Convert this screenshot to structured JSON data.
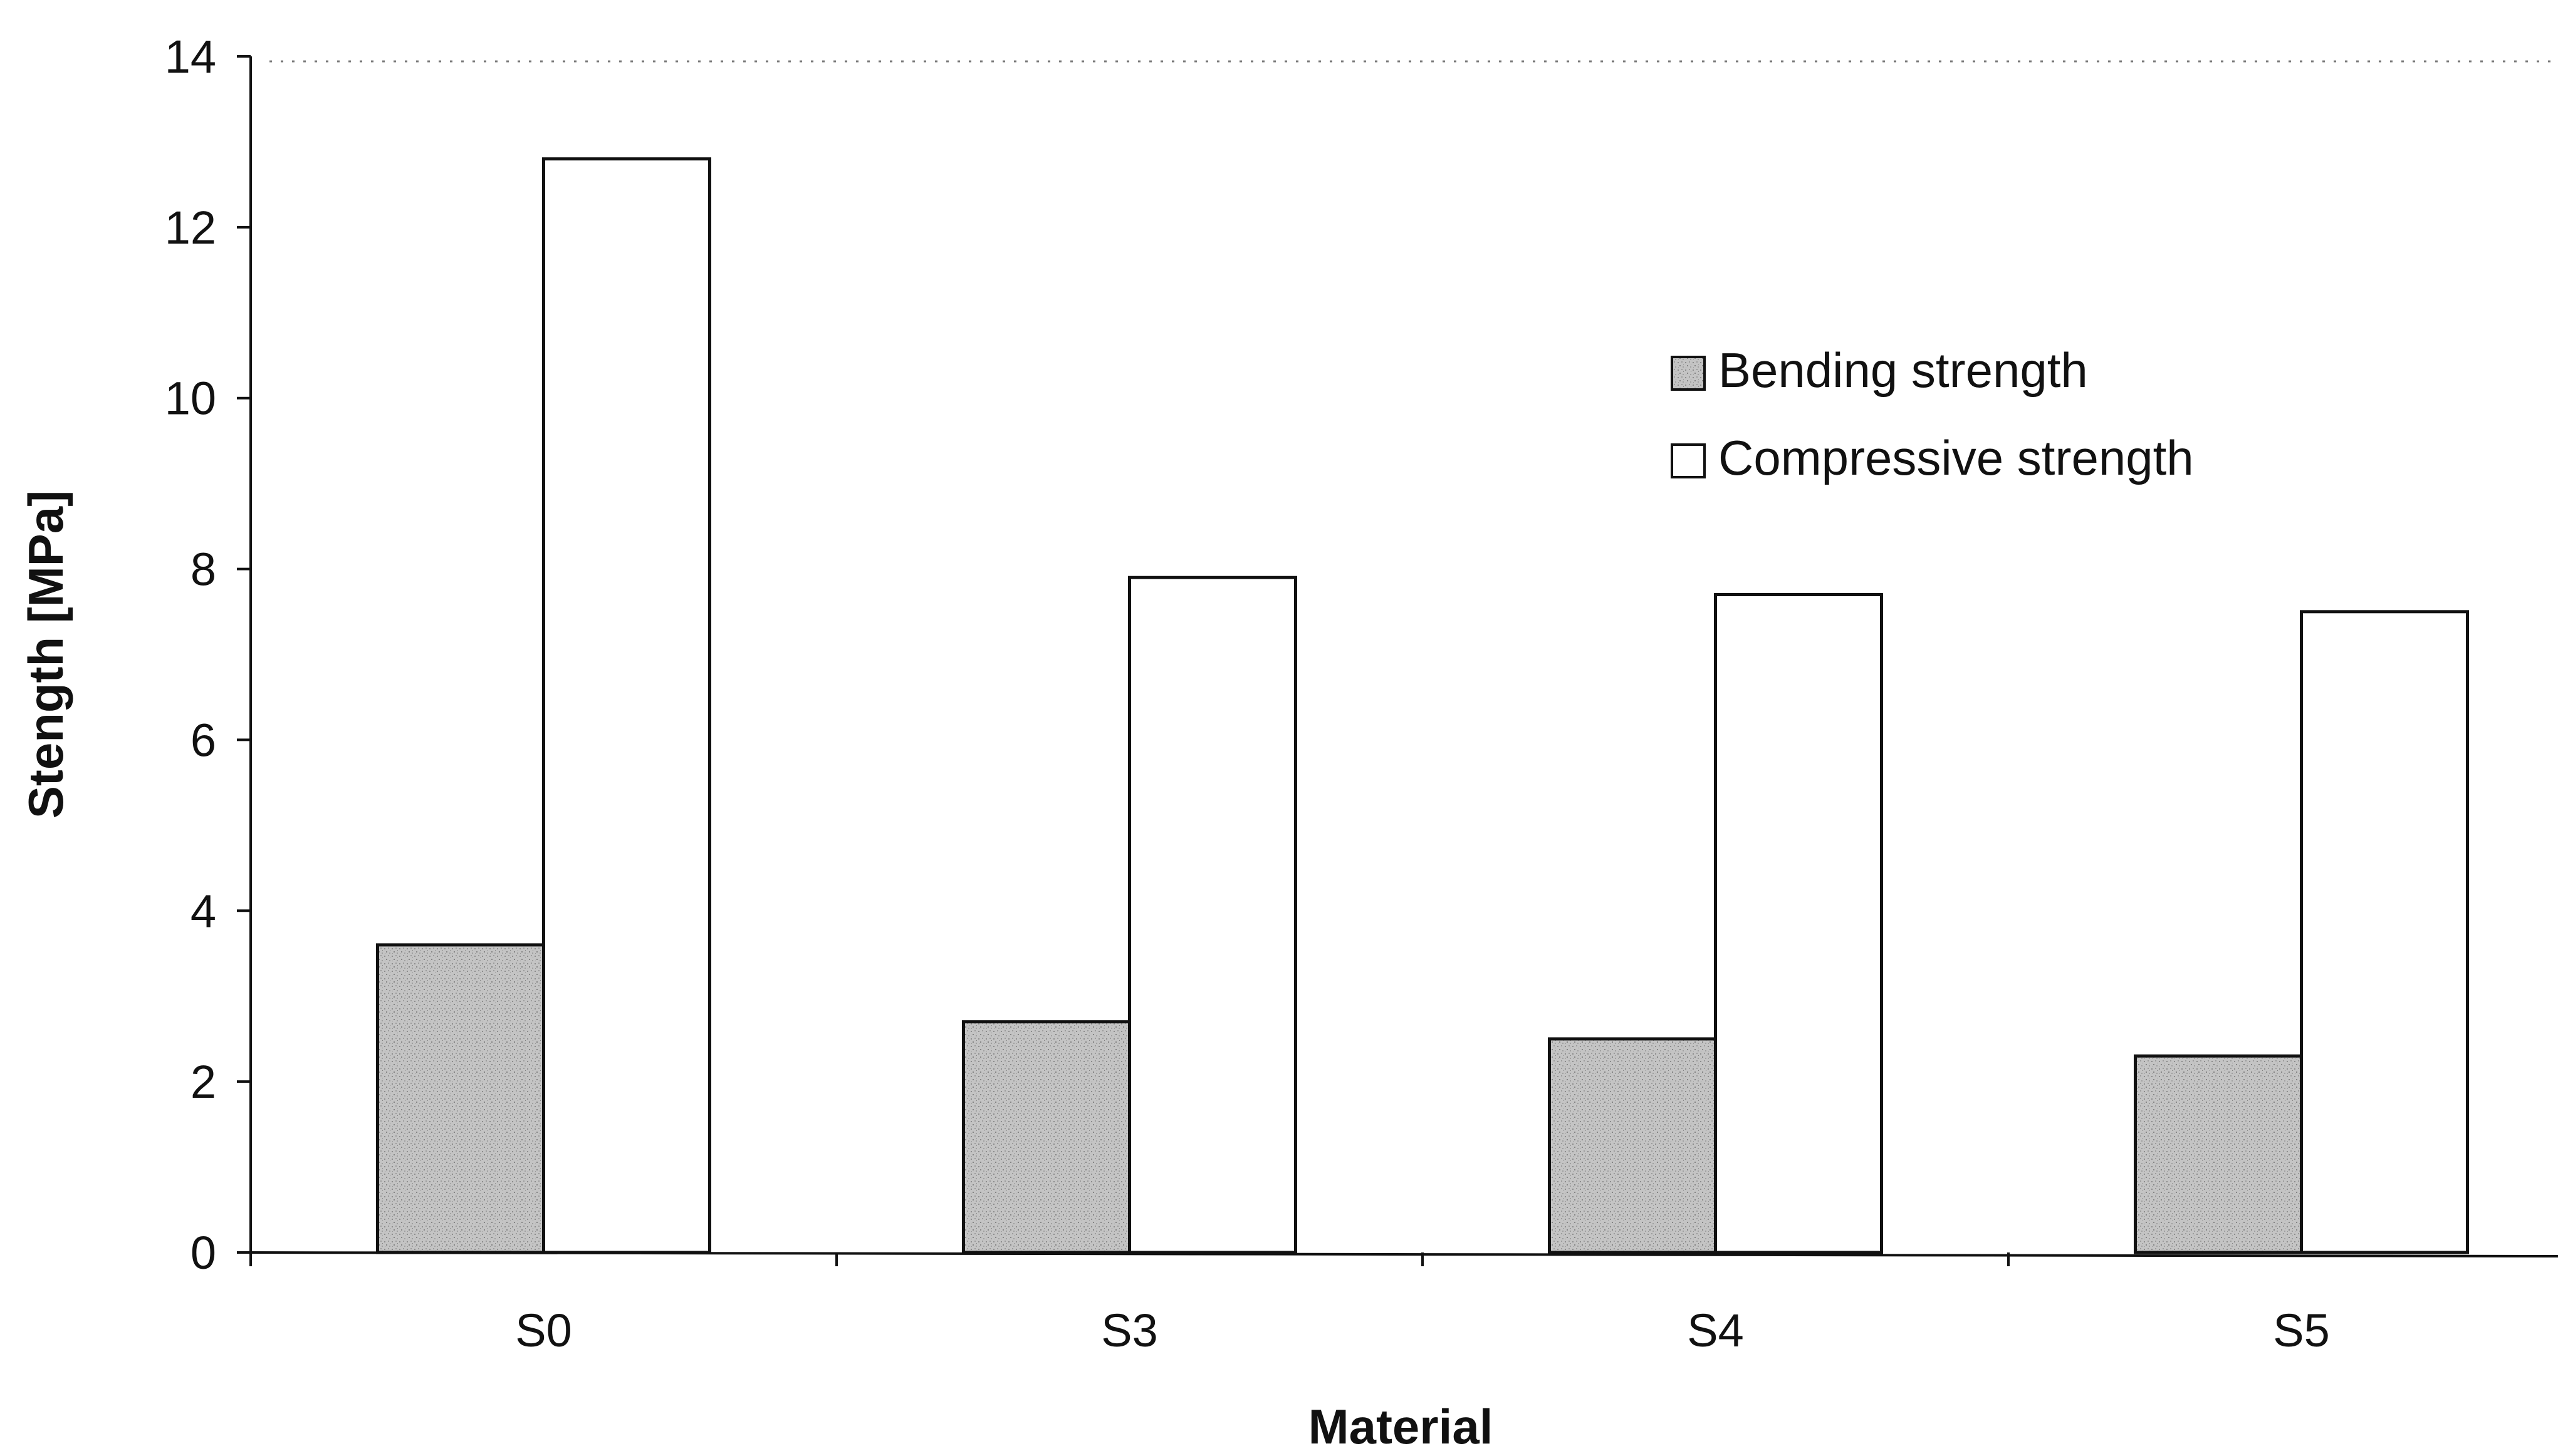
{
  "chart_data": {
    "type": "bar",
    "categories": [
      "S0",
      "S3",
      "S4",
      "S5"
    ],
    "series": [
      {
        "name": "Bending strength",
        "values": [
          3.6,
          2.7,
          2.5,
          2.3
        ],
        "color": "#b9b9b9",
        "pattern": "stippled-gray"
      },
      {
        "name": "Compressive strength",
        "values": [
          12.8,
          7.9,
          7.7,
          7.5
        ],
        "color": "#ffffff"
      }
    ],
    "xlabel": "Material",
    "ylabel": "Stength [MPa]",
    "ylim": [
      0,
      14
    ],
    "yticks": [
      "0",
      "2",
      "4",
      "6",
      "8",
      "10",
      "12",
      "14"
    ],
    "grid": false,
    "legend_position": "top-right",
    "colors": {
      "axis": "#111111",
      "bar_outline": "#111111",
      "top_dotted_line": "#7a7a7a"
    }
  }
}
